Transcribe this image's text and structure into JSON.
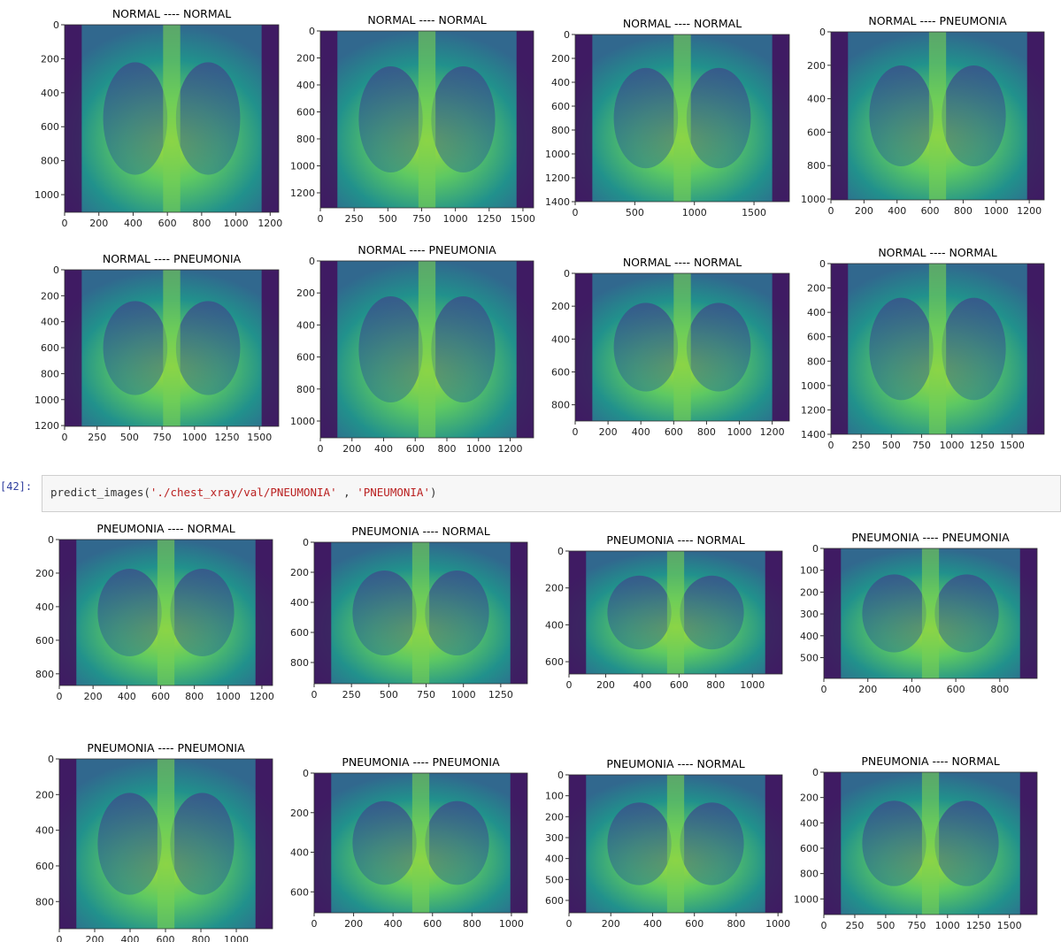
{
  "panels": [
    {
      "title": "NORMAL ---- NORMAL",
      "xticks": [
        0,
        200,
        400,
        600,
        800,
        1000,
        1200
      ],
      "yticks": [
        0,
        200,
        400,
        600,
        800,
        1000
      ]
    },
    {
      "title": "NORMAL ---- NORMAL",
      "xticks": [
        0,
        250,
        500,
        750,
        1000,
        1250,
        1500
      ],
      "yticks": [
        0,
        200,
        400,
        600,
        800,
        1000,
        1200
      ]
    },
    {
      "title": "NORMAL ---- NORMAL",
      "xticks": [
        0,
        500,
        1000,
        1500
      ],
      "yticks": [
        0,
        200,
        400,
        600,
        800,
        1000,
        1200,
        1400
      ]
    },
    {
      "title": "NORMAL ---- PNEUMONIA",
      "xticks": [
        0,
        200,
        400,
        600,
        800,
        1000,
        1200
      ],
      "yticks": [
        0,
        200,
        400,
        600,
        800,
        1000
      ]
    },
    {
      "title": "NORMAL ---- PNEUMONIA",
      "xticks": [
        0,
        250,
        500,
        750,
        1000,
        1250,
        1500
      ],
      "yticks": [
        0,
        200,
        400,
        600,
        800,
        1000,
        1200
      ]
    },
    {
      "title": "NORMAL ---- PNEUMONIA",
      "xticks": [
        0,
        200,
        400,
        600,
        800,
        1000,
        1200
      ],
      "yticks": [
        0,
        200,
        400,
        600,
        800,
        1000
      ]
    },
    {
      "title": "NORMAL ---- NORMAL",
      "xticks": [
        0,
        200,
        400,
        600,
        800,
        1000,
        1200
      ],
      "yticks": [
        0,
        200,
        400,
        600,
        800
      ]
    },
    {
      "title": "NORMAL ---- NORMAL",
      "xticks": [
        0,
        250,
        500,
        750,
        1000,
        1250,
        1500
      ],
      "yticks": [
        0,
        200,
        400,
        600,
        800,
        1000,
        1200,
        1400
      ]
    },
    {
      "title": "PNEUMONIA ---- NORMAL",
      "xticks": [
        0,
        200,
        400,
        600,
        800,
        1000,
        1200
      ],
      "yticks": [
        0,
        200,
        400,
        600,
        800
      ]
    },
    {
      "title": "PNEUMONIA ---- NORMAL",
      "xticks": [
        0,
        250,
        500,
        750,
        1000,
        1250
      ],
      "yticks": [
        0,
        200,
        400,
        600,
        800
      ]
    },
    {
      "title": "PNEUMONIA ---- NORMAL",
      "xticks": [
        0,
        200,
        400,
        600,
        800,
        1000
      ],
      "yticks": [
        0,
        200,
        400,
        600
      ]
    },
    {
      "title": "PNEUMONIA ---- PNEUMONIA",
      "xticks": [
        0,
        200,
        400,
        600,
        800
      ],
      "yticks": [
        0,
        100,
        200,
        300,
        400,
        500
      ]
    },
    {
      "title": "PNEUMONIA ---- PNEUMONIA",
      "xticks": [
        0,
        200,
        400,
        600,
        800,
        1000
      ],
      "yticks": [
        0,
        200,
        400,
        600,
        800
      ]
    },
    {
      "title": "PNEUMONIA ---- PNEUMONIA",
      "xticks": [
        0,
        200,
        400,
        600,
        800,
        1000
      ],
      "yticks": [
        0,
        200,
        400,
        600
      ]
    },
    {
      "title": "PNEUMONIA ---- NORMAL",
      "xticks": [
        0,
        200,
        400,
        600,
        800,
        1000
      ],
      "yticks": [
        0,
        100,
        200,
        300,
        400,
        500,
        600
      ]
    },
    {
      "title": "PNEUMONIA ---- NORMAL",
      "xticks": [
        0,
        250,
        500,
        750,
        1000,
        1250,
        1500
      ],
      "yticks": [
        0,
        200,
        400,
        600,
        800,
        1000
      ]
    }
  ],
  "cell": {
    "prompt": "[42]:",
    "code": {
      "func": "predict_images(",
      "arg1": "'./chest_xray/val/PNEUMONIA'",
      "sep": " , ",
      "arg2": "'PNEUMONIA'",
      "close": ")"
    }
  }
}
